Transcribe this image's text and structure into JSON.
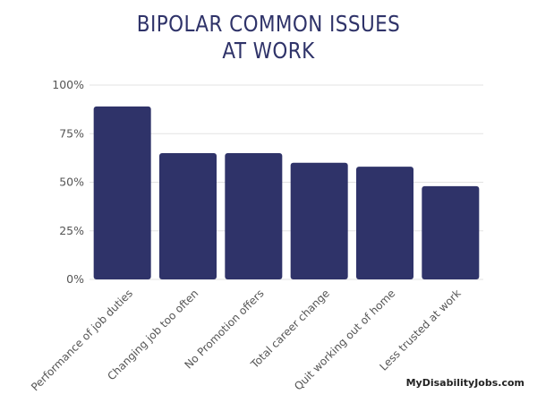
{
  "chart_data": {
    "type": "bar",
    "title_lines": [
      "BIPOLAR COMMON ISSUES",
      "AT WORK"
    ],
    "categories": [
      "Performance of job duties",
      "Changing job too often",
      "No Promotion offers",
      "Total career change",
      "Quit working out of home",
      "Less trusted at work"
    ],
    "values": [
      89,
      65,
      65,
      60,
      58,
      48
    ],
    "ylim": [
      0,
      100
    ],
    "yticks": [
      0,
      25,
      50,
      75,
      100
    ],
    "ytick_labels": [
      "0%",
      "25%",
      "50%",
      "75%",
      "100%"
    ],
    "bar_color": "#2f3369",
    "grid": true,
    "xlabel": "",
    "ylabel": ""
  },
  "source_label": "MyDisabilityJobs.com"
}
